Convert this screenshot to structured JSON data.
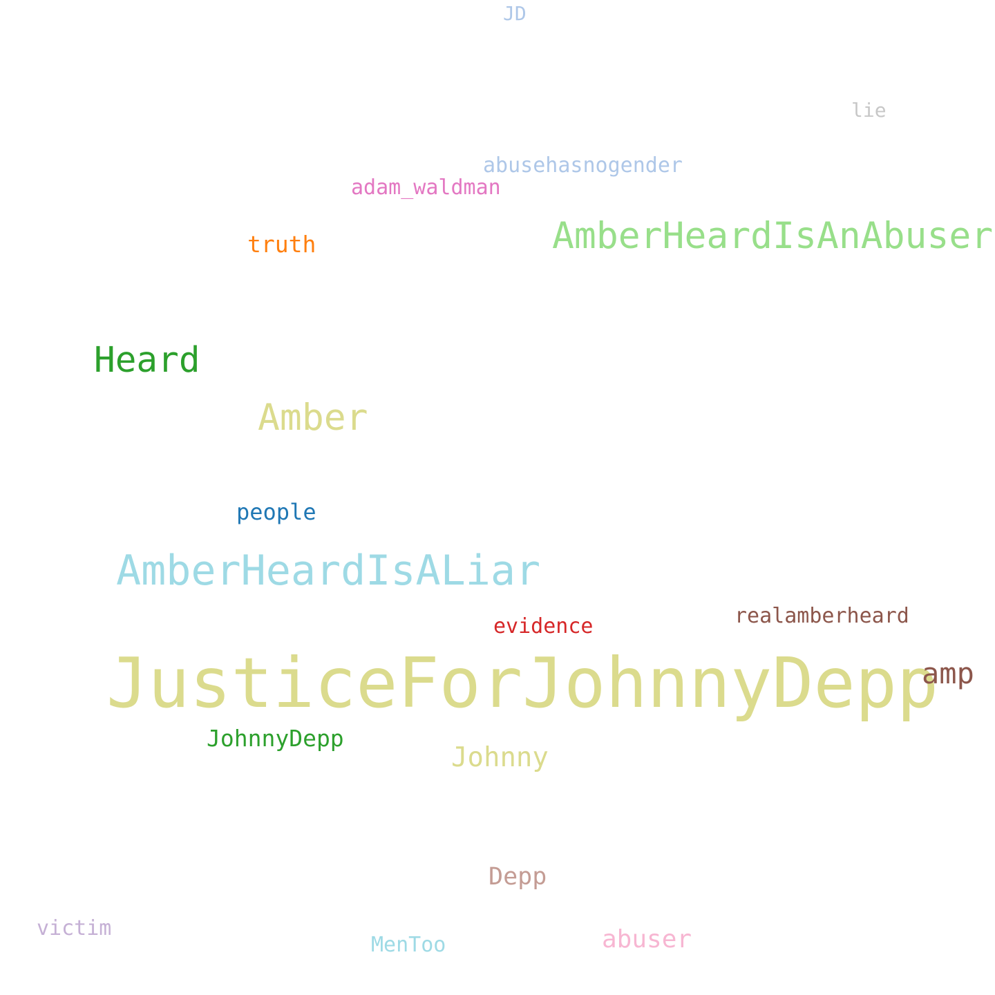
{
  "words": {
    "jd": {
      "text": "JD",
      "color": "#aec7e8"
    },
    "lie": {
      "text": "lie",
      "color": "#c7c7c7"
    },
    "abusehasnogender": {
      "text": "abusehasnogender",
      "color": "#aec7e8"
    },
    "adam_waldman": {
      "text": "adam_waldman",
      "color": "#e377c2"
    },
    "amberheardisanabuser": {
      "text": "AmberHeardIsAnAbuser",
      "color": "#98df8a"
    },
    "truth": {
      "text": "truth",
      "color": "#ff7f0e"
    },
    "heard": {
      "text": "Heard",
      "color": "#2ca02c"
    },
    "amber": {
      "text": "Amber",
      "color": "#dbdb8d"
    },
    "people": {
      "text": "people",
      "color": "#1f77b4"
    },
    "amberheardisaliar": {
      "text": "AmberHeardIsALiar",
      "color": "#9edae5"
    },
    "evidence": {
      "text": "evidence",
      "color": "#d62728"
    },
    "realamberheard": {
      "text": "realamberheard",
      "color": "#8c564b"
    },
    "justiceforjohnnydepp": {
      "text": "JusticeForJohnnyDepp",
      "color": "#dbdb8d"
    },
    "amp": {
      "text": "amp",
      "color": "#8c564b"
    },
    "johnnydepp": {
      "text": "JohnnyDepp",
      "color": "#2ca02c"
    },
    "johnny": {
      "text": "Johnny",
      "color": "#dbdb8d"
    },
    "depp": {
      "text": "Depp",
      "color": "#c49c94"
    },
    "victim": {
      "text": "victim",
      "color": "#c5b0d5"
    },
    "mentoo": {
      "text": "MenToo",
      "color": "#9edae5"
    },
    "abuser": {
      "text": "abuser",
      "color": "#f7b6d2"
    }
  }
}
